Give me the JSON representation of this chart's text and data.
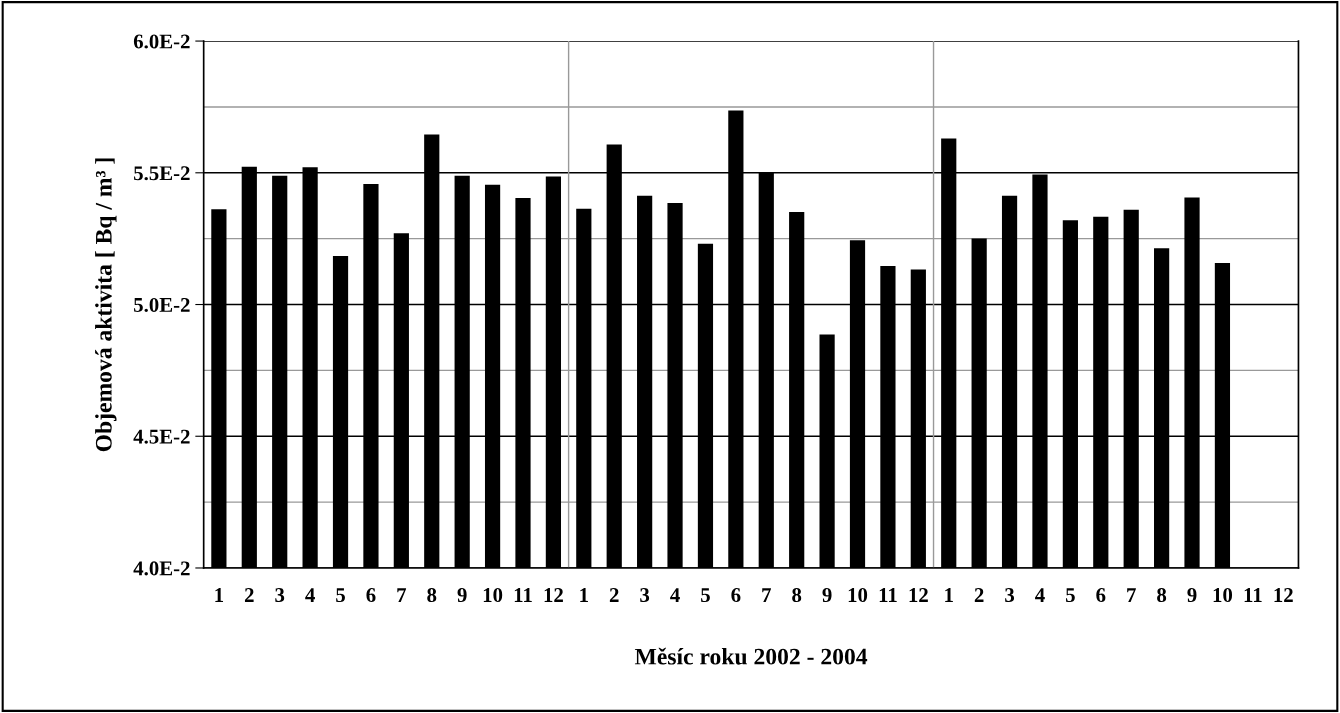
{
  "chart_data": {
    "type": "bar",
    "xlabel": "Měsíc roku 2002 - 2004",
    "ylabel": "Objemová aktivita [ Bq / m³ ]",
    "categories": [
      "1",
      "2",
      "3",
      "4",
      "5",
      "6",
      "7",
      "8",
      "9",
      "10",
      "11",
      "12",
      "1",
      "2",
      "3",
      "4",
      "5",
      "6",
      "7",
      "8",
      "9",
      "10",
      "11",
      "12",
      "1",
      "2",
      "3",
      "4",
      "5",
      "6",
      "7",
      "8",
      "9",
      "10",
      "11",
      "12"
    ],
    "values": [
      0.05362,
      0.05523,
      0.05489,
      0.05521,
      0.05184,
      0.05457,
      0.05271,
      0.05645,
      0.05489,
      0.05455,
      0.05404,
      0.05486,
      0.05364,
      0.05607,
      0.05413,
      0.05385,
      0.05231,
      0.05736,
      0.055,
      0.05351,
      0.04886,
      0.05244,
      0.05146,
      0.05133,
      0.0563,
      0.05251,
      0.05413,
      0.05494,
      0.0532,
      0.05333,
      0.0536,
      0.05214,
      0.05406,
      0.05158,
      null,
      null
    ],
    "color": "#000000",
    "ylim": [
      0.04,
      0.06
    ],
    "yticks": [
      {
        "value": 0.04,
        "label": "4.0E-2"
      },
      {
        "value": 0.0425,
        "label": null
      },
      {
        "value": 0.045,
        "label": "4.5E-2"
      },
      {
        "value": 0.0475,
        "label": null
      },
      {
        "value": 0.05,
        "label": "5.0E-2"
      },
      {
        "value": 0.0525,
        "label": null
      },
      {
        "value": 0.055,
        "label": "5.5E-2"
      },
      {
        "value": 0.0575,
        "label": null
      },
      {
        "value": 0.06,
        "label": "6.0E-2"
      }
    ],
    "grid": true
  }
}
